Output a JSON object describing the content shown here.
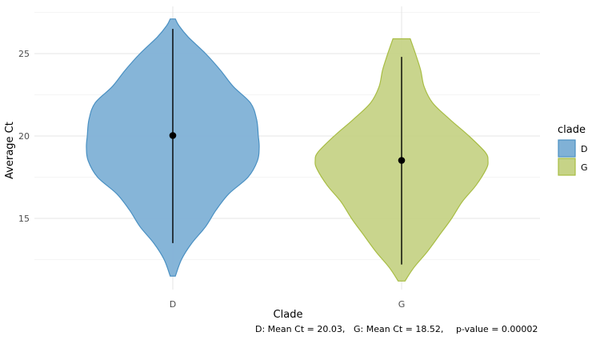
{
  "chart_data": {
    "type": "violin",
    "xlabel": "Clade",
    "ylabel": "Average Ct",
    "categories": [
      "D",
      "G"
    ],
    "y_ticks": [
      15,
      20,
      25
    ],
    "ylim": [
      10.5,
      27.5
    ],
    "grid": true,
    "legend": {
      "title": "clade",
      "placement": "right",
      "entries": [
        "D",
        "G"
      ]
    },
    "series": [
      {
        "category": "D",
        "color": "#4a90c2",
        "fill": "#80b1d6",
        "mean": 20.03,
        "range": [
          13.5,
          26.5
        ],
        "extent": [
          11.5,
          27.1
        ],
        "density": [
          [
            11.5,
            0.03
          ],
          [
            12.5,
            0.1
          ],
          [
            13.5,
            0.22
          ],
          [
            14.5,
            0.38
          ],
          [
            15.5,
            0.5
          ],
          [
            16.5,
            0.65
          ],
          [
            17.5,
            0.87
          ],
          [
            18.5,
            0.98
          ],
          [
            19.3,
            1.0
          ],
          [
            20.0,
            0.99
          ],
          [
            21.0,
            0.97
          ],
          [
            22.0,
            0.9
          ],
          [
            23.0,
            0.7
          ],
          [
            24.0,
            0.55
          ],
          [
            25.0,
            0.38
          ],
          [
            26.0,
            0.18
          ],
          [
            26.7,
            0.07
          ],
          [
            27.1,
            0.03
          ]
        ]
      },
      {
        "category": "G",
        "color": "#a8bd44",
        "fill": "#c6d387",
        "mean": 18.52,
        "range": [
          12.2,
          24.8
        ],
        "extent": [
          11.2,
          25.9
        ],
        "density": [
          [
            11.2,
            0.04
          ],
          [
            12.0,
            0.14
          ],
          [
            13.0,
            0.3
          ],
          [
            14.0,
            0.44
          ],
          [
            15.0,
            0.58
          ],
          [
            16.0,
            0.7
          ],
          [
            17.0,
            0.86
          ],
          [
            18.0,
            0.98
          ],
          [
            18.5,
            1.0
          ],
          [
            19.0,
            0.97
          ],
          [
            20.0,
            0.78
          ],
          [
            21.0,
            0.56
          ],
          [
            22.0,
            0.36
          ],
          [
            23.0,
            0.26
          ],
          [
            24.0,
            0.22
          ],
          [
            25.0,
            0.16
          ],
          [
            25.9,
            0.1
          ]
        ]
      }
    ]
  },
  "caption": {
    "d_text": "D: Mean Ct = 20.03,",
    "g_text": "G: Mean Ct = 18.52,",
    "p_text": "p-value = 0.00002"
  }
}
